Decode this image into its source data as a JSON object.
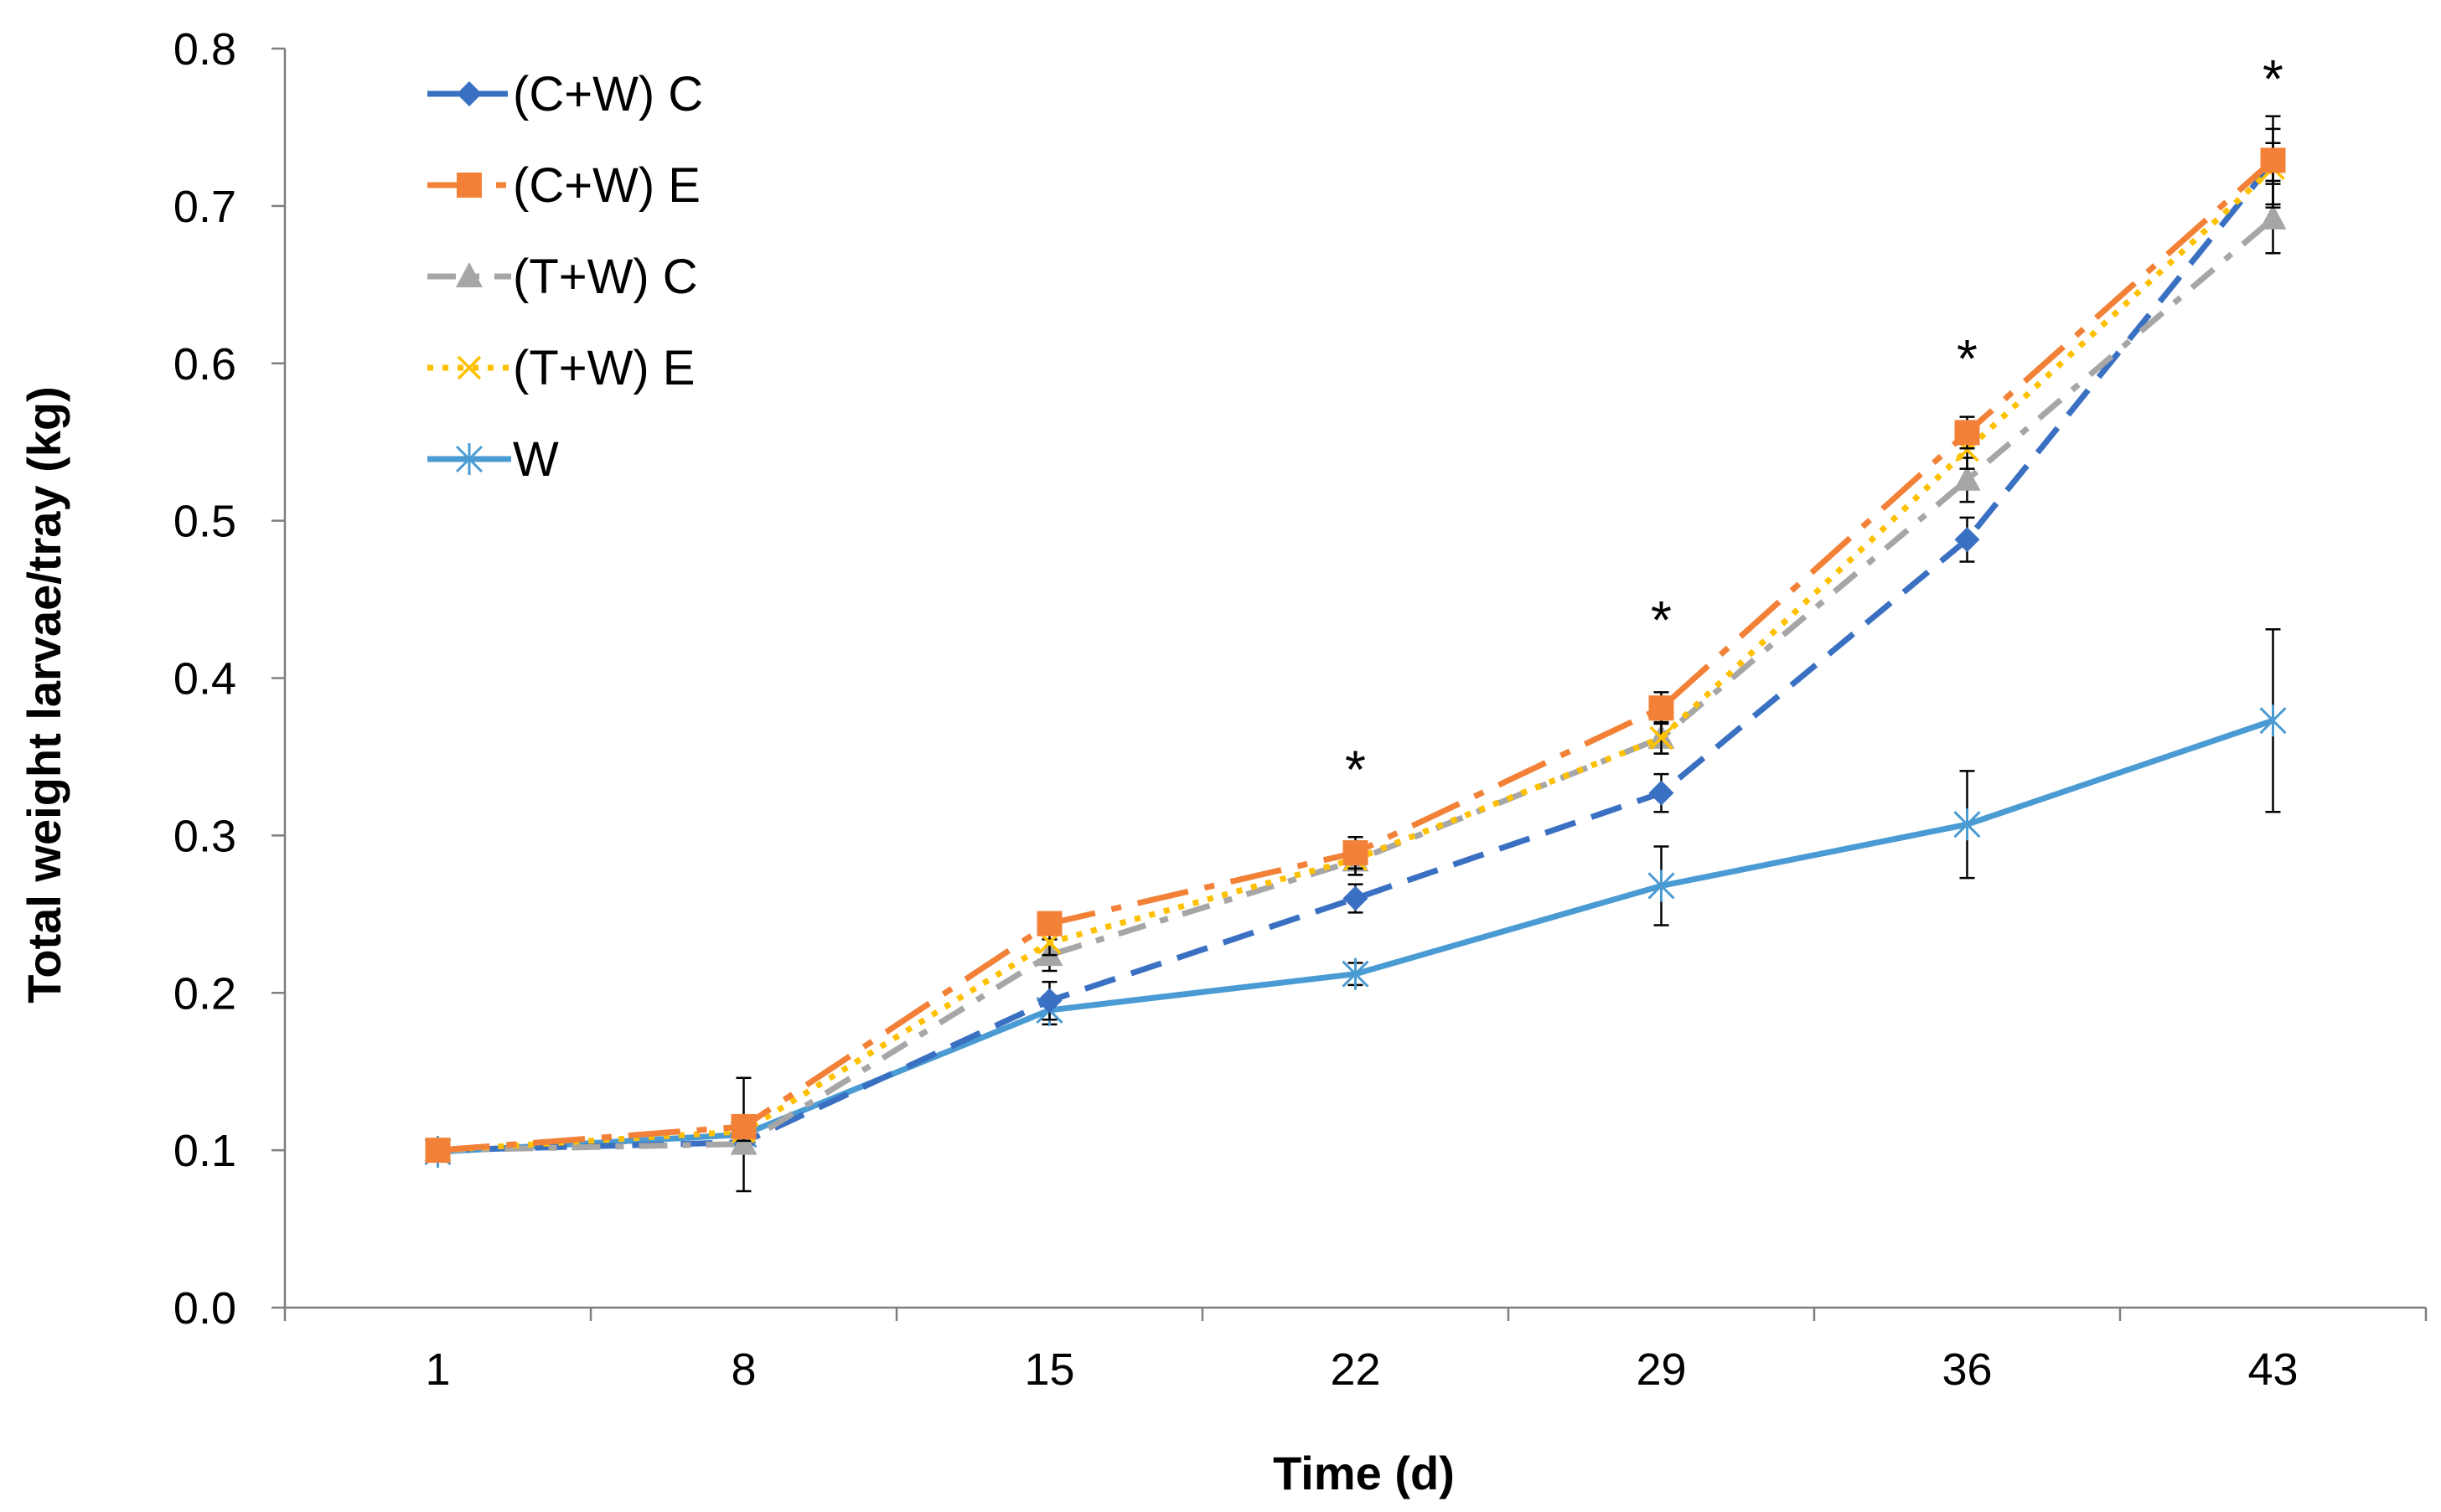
{
  "chart_data": {
    "type": "line",
    "title": "",
    "xlabel": "Time (d)",
    "ylabel": "Total weight larvae/tray (kg)",
    "x": [
      1,
      8,
      15,
      22,
      29,
      36,
      43
    ],
    "x_tick_labels": [
      "1",
      "8",
      "15",
      "22",
      "29",
      "36",
      "43"
    ],
    "ylim": [
      0,
      0.8
    ],
    "y_ticks": [
      0.0,
      0.1,
      0.2,
      0.3,
      0.4,
      0.5,
      0.6,
      0.7,
      0.8
    ],
    "y_tick_labels": [
      "0.0",
      "0.1",
      "0.2",
      "0.3",
      "0.4",
      "0.5",
      "0.6",
      "0.7",
      "0.8"
    ],
    "grid": false,
    "legend_position": "top-left",
    "series": [
      {
        "name": "(C+W) C",
        "color": "#3A70C2",
        "dash": "dash",
        "marker": "diamond",
        "values": [
          0.1,
          0.105,
          0.195,
          0.26,
          0.327,
          0.488,
          0.728
        ],
        "errors": [
          0.003,
          0.006,
          0.012,
          0.009,
          0.012,
          0.014,
          0.012
        ]
      },
      {
        "name": "(C+W) E",
        "color": "#F28137",
        "dash": "longdashdot",
        "marker": "square",
        "values": [
          0.1,
          0.115,
          0.244,
          0.289,
          0.381,
          0.556,
          0.729
        ],
        "errors": [
          0.003,
          0.005,
          0.006,
          0.01,
          0.01,
          0.01,
          0.028
        ]
      },
      {
        "name": "(T+W) C",
        "color": "#A6A6A6",
        "dash": "dashdot",
        "marker": "triangle",
        "values": [
          0.1,
          0.104,
          0.224,
          0.284,
          0.362,
          0.526,
          0.692
        ],
        "errors": [
          0.003,
          0.006,
          0.01,
          0.009,
          0.01,
          0.014,
          0.022
        ]
      },
      {
        "name": "(T+W) E",
        "color": "#FFC000",
        "dash": "dot",
        "marker": "x",
        "values": [
          0.1,
          0.112,
          0.232,
          0.285,
          0.362,
          0.545,
          0.724
        ],
        "errors": [
          0.003,
          0.006,
          0.008,
          0.01,
          0.01,
          0.012,
          0.025
        ]
      },
      {
        "name": "W",
        "color": "#4A9BD3",
        "dash": "solid",
        "marker": "star",
        "values": [
          0.099,
          0.11,
          0.189,
          0.212,
          0.268,
          0.307,
          0.373
        ],
        "errors": [
          0.003,
          0.036,
          0.009,
          0.007,
          0.025,
          0.034,
          0.058
        ]
      }
    ],
    "annotations": [
      {
        "x": 22,
        "y": 0.343,
        "text": "*"
      },
      {
        "x": 29,
        "y": 0.438,
        "text": "*"
      },
      {
        "x": 36,
        "y": 0.604,
        "text": "*"
      },
      {
        "x": 43,
        "y": 0.782,
        "text": "*"
      }
    ]
  }
}
